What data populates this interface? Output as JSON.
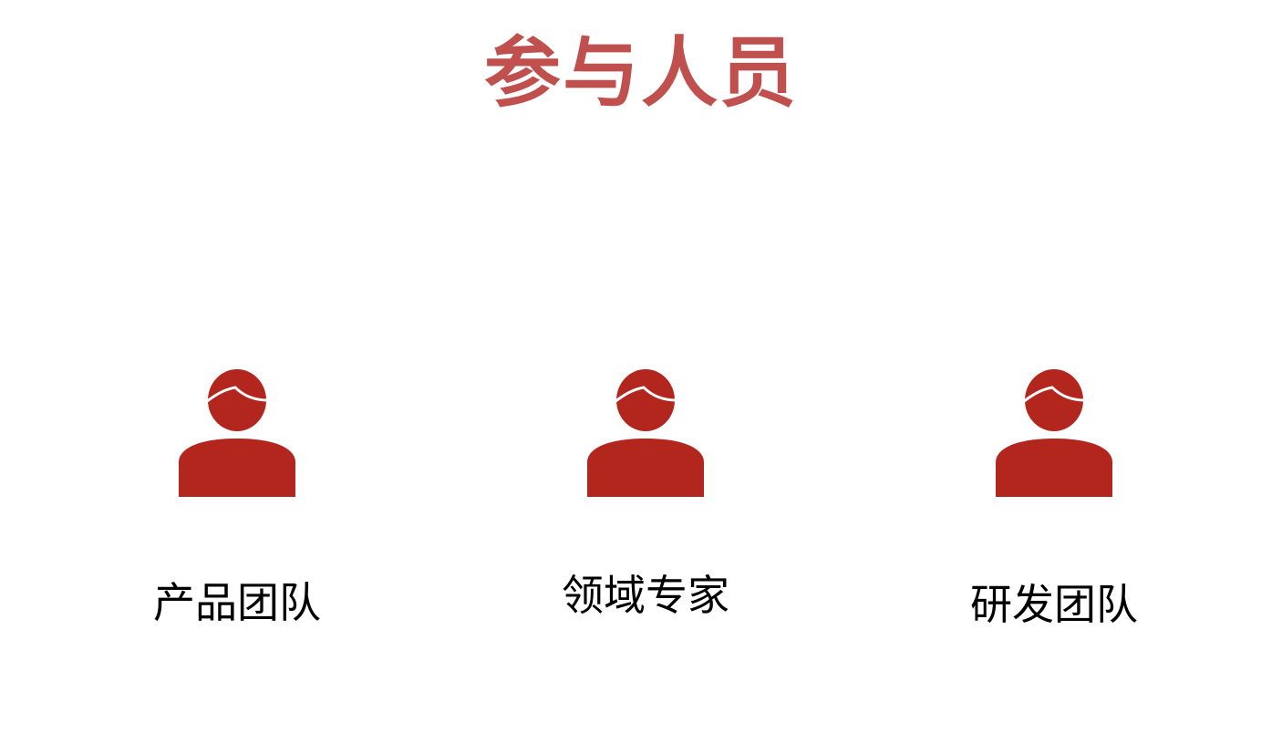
{
  "title": "参与人员",
  "accent_color": "#b3261e",
  "title_color": "#c0504d",
  "members": [
    {
      "label": "产品团队",
      "icon": "person-icon"
    },
    {
      "label": "领域专家",
      "icon": "person-icon"
    },
    {
      "label": "研发团队",
      "icon": "person-icon"
    }
  ]
}
